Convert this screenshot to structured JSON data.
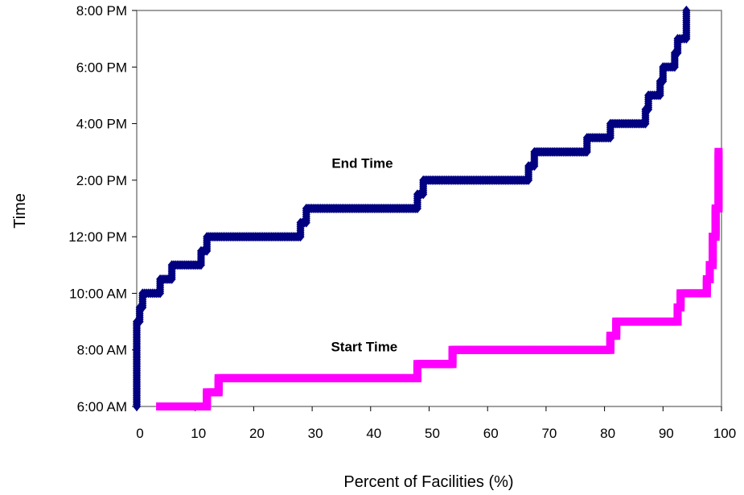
{
  "chart_data": {
    "type": "line",
    "title": "",
    "xlabel": "Percent of Facilities (%)",
    "ylabel": "Time",
    "xlim": [
      0,
      100
    ],
    "ylim": [
      "6:00 AM",
      "8:00 PM"
    ],
    "x_ticks": [
      "0",
      "10",
      "20",
      "30",
      "40",
      "50",
      "60",
      "70",
      "80",
      "90",
      "100"
    ],
    "y_ticks": [
      "6:00 AM",
      "8:00 AM",
      "10:00 AM",
      "12:00 PM",
      "2:00 PM",
      "4:00 PM",
      "6:00 PM",
      "8:00 PM"
    ],
    "grid": false,
    "series": [
      {
        "name": "End Time",
        "color": "#000080",
        "marker": "diamond",
        "points": [
          [
            0,
            "6:00 AM"
          ],
          [
            0,
            "9:00 AM"
          ],
          [
            0.5,
            "9:00 AM"
          ],
          [
            0.5,
            "9:30 AM"
          ],
          [
            1,
            "9:30 AM"
          ],
          [
            1,
            "10:00 AM"
          ],
          [
            4,
            "10:00 AM"
          ],
          [
            4,
            "10:30 AM"
          ],
          [
            6,
            "10:30 AM"
          ],
          [
            6,
            "11:00 AM"
          ],
          [
            11,
            "11:00 AM"
          ],
          [
            11,
            "11:30 AM"
          ],
          [
            12,
            "11:30 AM"
          ],
          [
            12,
            "12:00 PM"
          ],
          [
            28,
            "12:00 PM"
          ],
          [
            28,
            "12:30 PM"
          ],
          [
            29,
            "12:30 PM"
          ],
          [
            29,
            "1:00 PM"
          ],
          [
            48,
            "1:00 PM"
          ],
          [
            48,
            "1:30 PM"
          ],
          [
            49,
            "1:30 PM"
          ],
          [
            49,
            "2:00 PM"
          ],
          [
            67,
            "2:00 PM"
          ],
          [
            67,
            "2:30 PM"
          ],
          [
            68,
            "2:30 PM"
          ],
          [
            68,
            "3:00 PM"
          ],
          [
            77,
            "3:00 PM"
          ],
          [
            77,
            "3:30 PM"
          ],
          [
            81,
            "3:30 PM"
          ],
          [
            81,
            "4:00 PM"
          ],
          [
            87,
            "4:00 PM"
          ],
          [
            87,
            "4:30 PM"
          ],
          [
            87.5,
            "4:30 PM"
          ],
          [
            87.5,
            "5:00 PM"
          ],
          [
            89.5,
            "5:00 PM"
          ],
          [
            89.5,
            "5:30 PM"
          ],
          [
            90,
            "5:30 PM"
          ],
          [
            90,
            "6:00 PM"
          ],
          [
            92,
            "6:00 PM"
          ],
          [
            92,
            "6:30 PM"
          ],
          [
            92.5,
            "6:30 PM"
          ],
          [
            92.5,
            "7:00 PM"
          ],
          [
            94,
            "7:00 PM"
          ],
          [
            94,
            "7:30 PM"
          ],
          [
            94,
            "8:00 PM"
          ]
        ]
      },
      {
        "name": "Start Time",
        "color": "#ff00ff",
        "marker": "square",
        "points": [
          [
            4,
            "6:00 AM"
          ],
          [
            12,
            "6:00 AM"
          ],
          [
            12,
            "6:30 AM"
          ],
          [
            14,
            "6:30 AM"
          ],
          [
            14,
            "7:00 AM"
          ],
          [
            48,
            "7:00 AM"
          ],
          [
            48,
            "7:30 AM"
          ],
          [
            54,
            "7:30 AM"
          ],
          [
            54,
            "8:00 AM"
          ],
          [
            81,
            "8:00 AM"
          ],
          [
            81,
            "8:30 AM"
          ],
          [
            82,
            "8:30 AM"
          ],
          [
            82,
            "9:00 AM"
          ],
          [
            92.5,
            "9:00 AM"
          ],
          [
            92.5,
            "9:30 AM"
          ],
          [
            93,
            "9:30 AM"
          ],
          [
            93,
            "10:00 AM"
          ],
          [
            97.5,
            "10:00 AM"
          ],
          [
            97.5,
            "10:30 AM"
          ],
          [
            98,
            "10:30 AM"
          ],
          [
            98,
            "11:00 AM"
          ],
          [
            98.5,
            "11:00 AM"
          ],
          [
            98.5,
            "12:00 PM"
          ],
          [
            99,
            "12:00 PM"
          ],
          [
            99,
            "1:00 PM"
          ],
          [
            99.5,
            "1:00 PM"
          ],
          [
            99.5,
            "2:30 PM"
          ],
          [
            99.5,
            "3:00 PM"
          ]
        ]
      }
    ],
    "annotations": [
      {
        "text": "End Time",
        "x": 36.5,
        "y": "2:30 PM"
      },
      {
        "text": "Start Time",
        "x": 35,
        "y": "8:00 AM"
      }
    ]
  }
}
